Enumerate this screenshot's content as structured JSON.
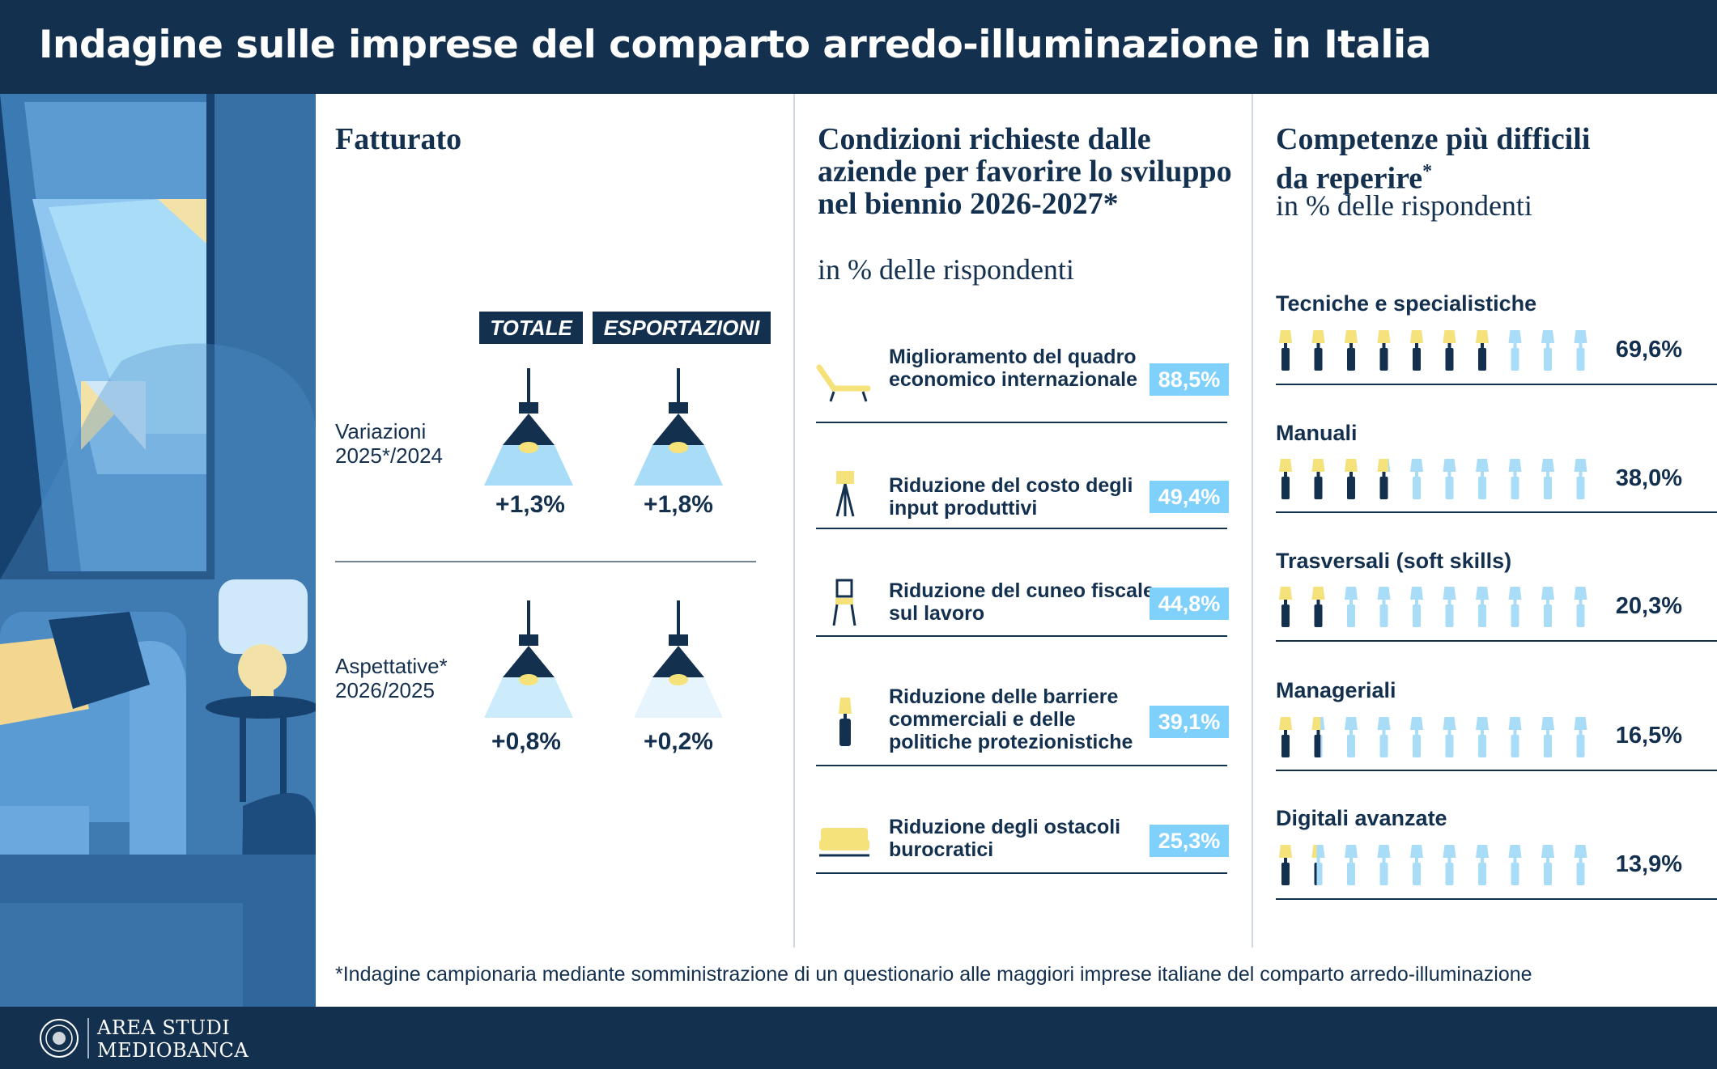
{
  "header": {
    "title": "Indagine sulle imprese del comparto arredo-illuminazione in Italia"
  },
  "fatturato": {
    "title": "Fatturato",
    "columns": [
      "TOTALE",
      "ESPORTAZIONI"
    ],
    "rows": [
      {
        "label_line1": "Variazioni",
        "label_line2": "2025*/2024",
        "values": [
          "+1,3%",
          "+1,8%"
        ]
      },
      {
        "label_line1": "Aspettative*",
        "label_line2": "2026/2025",
        "values": [
          "+0,8%",
          "+0,2%"
        ]
      }
    ]
  },
  "condizioni": {
    "title": "Condizioni richieste dalle aziende per favorire lo sviluppo nel biennio 2026-2027*",
    "subtitle": "in % delle rispondenti",
    "items": [
      {
        "icon": "lounge-chair-icon",
        "label": "Miglioramento del quadro economico internazionale",
        "value": "88,5%"
      },
      {
        "icon": "floor-lamp-icon",
        "label": "Riduzione del costo degli input produttivi",
        "value": "49,4%"
      },
      {
        "icon": "chair-icon",
        "label": "Riduzione del cuneo fiscale sul lavoro",
        "value": "44,8%"
      },
      {
        "icon": "table-lamp-icon",
        "label": "Riduzione delle barriere commerciali e delle politiche protezionistiche",
        "value": "39,1%"
      },
      {
        "icon": "sofa-icon",
        "label": "Riduzione degli ostacoli burocratici",
        "value": "25,3%"
      }
    ]
  },
  "competenze": {
    "title_line1": "Competenze più difficili",
    "title_line2": "da reperire",
    "title_mark": "*",
    "subtitle": "in % delle rispondenti",
    "items": [
      {
        "label": "Tecniche e specialistiche",
        "value": "69,6%"
      },
      {
        "label": "Manuali",
        "value": "38,0%"
      },
      {
        "label": "Trasversali (soft skills)",
        "value": "20,3%"
      },
      {
        "label": "Manageriali",
        "value": "16,5%"
      },
      {
        "label": "Digitali avanzate",
        "value": "13,9%"
      }
    ]
  },
  "chart_data": [
    {
      "type": "table",
      "title": "Fatturato",
      "columns": [
        "TOTALE",
        "ESPORTAZIONI"
      ],
      "rows": [
        "Variazioni 2025*/2024",
        "Aspettative* 2026/2025"
      ],
      "values": [
        [
          1.3,
          1.8
        ],
        [
          0.8,
          0.2
        ]
      ],
      "unit": "%"
    },
    {
      "type": "table",
      "title": "Condizioni richieste dalle aziende per favorire lo sviluppo nel biennio 2026-2027*",
      "categories": [
        "Miglioramento del quadro economico internazionale",
        "Riduzione del costo degli input produttivi",
        "Riduzione del cuneo fiscale sul lavoro",
        "Riduzione delle barriere commerciali e delle politiche protezionistiche",
        "Riduzione degli ostacoli burocratici"
      ],
      "values": [
        88.5,
        49.4,
        44.8,
        39.1,
        25.3
      ],
      "unit": "%"
    },
    {
      "type": "bar",
      "title": "Competenze più difficili da reperire*",
      "categories": [
        "Tecniche e specialistiche",
        "Manuali",
        "Trasversali (soft skills)",
        "Manageriali",
        "Digitali avanzate"
      ],
      "values": [
        69.6,
        38.0,
        20.3,
        16.5,
        13.9
      ],
      "unit": "%",
      "ylim": [
        0,
        100
      ]
    }
  ],
  "footnote": "*Indagine campionaria mediante somministrazione di un questionario alle maggiori imprese italiane del comparto arredo-illuminazione",
  "footer": {
    "brand_line1": "AREA STUDI",
    "brand_line2": "MEDIOBANCA"
  },
  "colors": {
    "navy": "#14304f",
    "light_blue": "#7fd0fa",
    "yellow": "#f5e27a",
    "pale_blue": "#a9dcf7"
  }
}
